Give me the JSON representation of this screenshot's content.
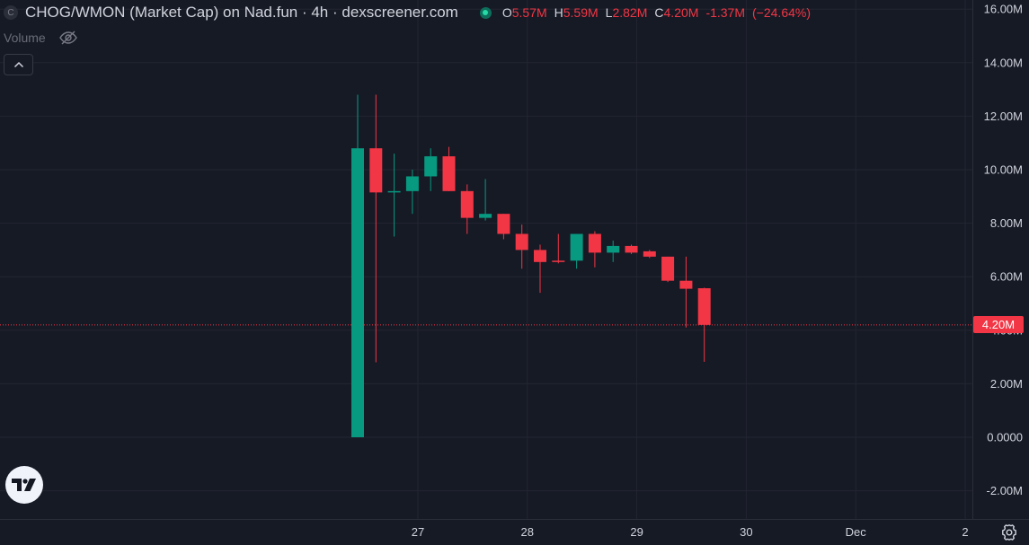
{
  "header": {
    "symbol_icon_letter": "C",
    "title": "CHOG/WMON (Market Cap) on Nad.fun · 4h · dexscreener.com",
    "ohlc": {
      "o_label": "O",
      "o_value": "5.57M",
      "h_label": "H",
      "h_value": "5.59M",
      "l_label": "L",
      "l_value": "2.82M",
      "c_label": "C",
      "c_value": "4.20M",
      "change": "-1.37M",
      "change_pct": "(−24.64%)"
    }
  },
  "volume_label": "Volume",
  "icons": {
    "visibility": "eye-off-icon",
    "collapse": "chevron-up-icon",
    "logo": "tradingview-logo-icon",
    "settings": "gear-icon"
  },
  "colors": {
    "background": "#161a25",
    "grid": "#232632",
    "up": "#089981",
    "down": "#f23645",
    "axis_text": "#d1d4dc"
  },
  "last_price_label": "4.20M",
  "chart_data": {
    "type": "candlestick",
    "title": "CHOG/WMON (Market Cap) on Nad.fun · 4h · dexscreener.com",
    "y_ticks": [
      {
        "value": 16,
        "label": "16.00M"
      },
      {
        "value": 14,
        "label": "14.00M"
      },
      {
        "value": 12,
        "label": "12.00M"
      },
      {
        "value": 10,
        "label": "10.00M"
      },
      {
        "value": 8,
        "label": "8.00M"
      },
      {
        "value": 6,
        "label": "6.00M"
      },
      {
        "value": 4,
        "label": "4.00M"
      },
      {
        "value": 2,
        "label": "2.00M"
      },
      {
        "value": 0,
        "label": "0.0000"
      },
      {
        "value": -2,
        "label": "-2.00M"
      }
    ],
    "ylim": [
      -3,
      16.4
    ],
    "x_ticks": [
      {
        "label": "27",
        "index": 3.3
      },
      {
        "label": "28",
        "index": 9.3
      },
      {
        "label": "29",
        "index": 15.3
      },
      {
        "label": "30",
        "index": 21.3
      },
      {
        "label": "Dec",
        "index": 27.3
      },
      {
        "label": "2",
        "index": 33.3
      }
    ],
    "candles": [
      {
        "o": 0.0,
        "h": 12.8,
        "l": 0.0,
        "c": 10.8
      },
      {
        "o": 10.8,
        "h": 12.8,
        "l": 2.8,
        "c": 9.15
      },
      {
        "o": 9.15,
        "h": 10.6,
        "l": 7.5,
        "c": 9.2
      },
      {
        "o": 9.2,
        "h": 10.0,
        "l": 8.35,
        "c": 9.75
      },
      {
        "o": 9.75,
        "h": 10.8,
        "l": 9.2,
        "c": 10.5
      },
      {
        "o": 10.5,
        "h": 10.85,
        "l": 9.2,
        "c": 9.2
      },
      {
        "o": 9.2,
        "h": 9.45,
        "l": 7.6,
        "c": 8.2
      },
      {
        "o": 8.2,
        "h": 9.65,
        "l": 8.1,
        "c": 8.35
      },
      {
        "o": 8.35,
        "h": 8.35,
        "l": 7.4,
        "c": 7.6
      },
      {
        "o": 7.6,
        "h": 7.95,
        "l": 6.3,
        "c": 7.0
      },
      {
        "o": 7.0,
        "h": 7.2,
        "l": 5.4,
        "c": 6.55
      },
      {
        "o": 6.6,
        "h": 7.6,
        "l": 6.5,
        "c": 6.55
      },
      {
        "o": 6.6,
        "h": 7.6,
        "l": 6.3,
        "c": 7.6
      },
      {
        "o": 7.6,
        "h": 7.7,
        "l": 6.35,
        "c": 6.9
      },
      {
        "o": 6.9,
        "h": 7.35,
        "l": 6.55,
        "c": 7.15
      },
      {
        "o": 7.15,
        "h": 7.2,
        "l": 6.85,
        "c": 6.9
      },
      {
        "o": 6.95,
        "h": 7.0,
        "l": 6.7,
        "c": 6.75
      },
      {
        "o": 6.75,
        "h": 6.75,
        "l": 5.8,
        "c": 5.85
      },
      {
        "o": 5.85,
        "h": 6.75,
        "l": 4.1,
        "c": 5.55
      },
      {
        "o": 5.57,
        "h": 5.59,
        "l": 2.82,
        "c": 4.2
      }
    ],
    "last_price": 4.2
  }
}
